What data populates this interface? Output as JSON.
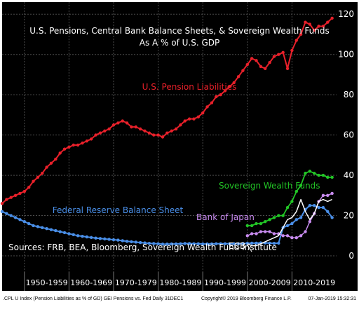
{
  "chart_data": {
    "type": "line",
    "title": "U.S. Pensions, Central Bank Balance Sheets, & Sovereign Wealth Funds",
    "subtitle": "As A % of U.S. GDP",
    "source_note": "Sources: FRB, BEA, Bloomberg, Sovereign Wealth Fund Institute",
    "y_ticks": [
      0,
      20,
      40,
      60,
      80,
      100,
      120
    ],
    "ylim": [
      -8,
      126
    ],
    "xlim": [
      1945,
      2020
    ],
    "decades": [
      "1950-1959",
      "1960-1969",
      "1970-1979",
      "1980-1989",
      "1990-1999",
      "2000-2009",
      "2010-2019"
    ],
    "grid": true,
    "series": [
      {
        "name": "U.S. Pension Liabilities",
        "color": "#e8202a",
        "x": [
          1945,
          1946,
          1947,
          1948,
          1949,
          1950,
          1951,
          1952,
          1953,
          1954,
          1955,
          1956,
          1957,
          1958,
          1959,
          1960,
          1961,
          1962,
          1963,
          1964,
          1965,
          1966,
          1967,
          1968,
          1969,
          1970,
          1971,
          1972,
          1973,
          1974,
          1975,
          1976,
          1977,
          1978,
          1979,
          1980,
          1981,
          1982,
          1983,
          1984,
          1985,
          1986,
          1987,
          1988,
          1989,
          1990,
          1991,
          1992,
          1993,
          1994,
          1995,
          1996,
          1997,
          1998,
          1999,
          2000,
          2001,
          2002,
          2003,
          2004,
          2005,
          2006,
          2007,
          2008,
          2009,
          2010,
          2011,
          2012,
          2013,
          2014,
          2015,
          2016,
          2017,
          2018,
          2019
        ],
        "values": [
          26,
          28,
          29,
          30,
          31,
          32,
          34,
          37,
          39,
          41,
          44,
          46,
          48,
          51,
          53,
          54,
          55,
          55,
          56,
          57,
          58,
          60,
          61,
          62,
          63,
          65,
          66,
          67,
          66,
          64,
          64,
          63,
          62,
          61,
          60,
          60,
          59,
          61,
          62,
          63,
          65,
          67,
          68,
          68,
          69,
          71,
          74,
          76,
          79,
          80,
          82,
          84,
          86,
          89,
          92,
          95,
          98,
          97,
          94,
          93,
          96,
          99,
          100,
          101,
          93,
          102,
          107,
          110,
          116,
          115,
          112,
          114,
          114,
          116,
          118
        ]
      },
      {
        "name": "Federal Reserve Balance Sheet",
        "color": "#4a8fe8",
        "x": [
          1945,
          1946,
          1947,
          1948,
          1949,
          1950,
          1951,
          1952,
          1953,
          1954,
          1955,
          1956,
          1957,
          1958,
          1959,
          1960,
          1961,
          1962,
          1963,
          1964,
          1965,
          1966,
          1967,
          1968,
          1969,
          1970,
          1971,
          1972,
          1973,
          1974,
          1975,
          1976,
          1977,
          1978,
          1979,
          1980,
          1981,
          1982,
          1983,
          1984,
          1985,
          1986,
          1987,
          1988,
          1989,
          1990,
          1991,
          1992,
          1993,
          1994,
          1995,
          1996,
          1997,
          1998,
          1999,
          2000,
          2001,
          2002,
          2003,
          2004,
          2005,
          2006,
          2007,
          2008,
          2009,
          2010,
          2011,
          2012,
          2013,
          2014,
          2015,
          2016,
          2017,
          2018,
          2019
        ],
        "values": [
          22,
          21,
          20,
          19,
          18,
          17,
          16,
          15,
          14.5,
          14,
          13.5,
          13,
          12.5,
          12,
          11.5,
          11,
          10.5,
          10,
          9.7,
          9.4,
          9.1,
          8.8,
          8.6,
          8.4,
          8.2,
          8,
          7.8,
          7.5,
          7.2,
          7,
          6.8,
          6.6,
          6.4,
          6.2,
          6.1,
          6,
          5.8,
          5.8,
          5.9,
          5.9,
          6,
          6.1,
          6.1,
          6,
          6,
          5.9,
          5.9,
          5.9,
          6,
          6,
          6,
          6,
          6,
          6,
          6.1,
          6.2,
          6.3,
          6.3,
          6.4,
          6.4,
          6.3,
          6.2,
          6.3,
          14,
          15,
          16,
          18,
          19,
          23,
          25,
          25,
          24,
          24,
          22,
          19
        ]
      },
      {
        "name": "Sovereign Wealth Funds",
        "color": "#22c626",
        "x": [
          2000,
          2001,
          2002,
          2003,
          2004,
          2005,
          2006,
          2007,
          2008,
          2009,
          2010,
          2011,
          2012,
          2013,
          2014,
          2015,
          2016,
          2017,
          2018,
          2019
        ],
        "values": [
          15,
          15,
          16,
          16,
          17,
          18,
          19,
          20,
          20,
          24,
          27,
          32,
          35,
          41,
          42,
          41,
          40,
          40,
          39,
          39
        ]
      },
      {
        "name": "Bank of Japan",
        "color": "#c98cf0",
        "x": [
          2000,
          2001,
          2002,
          2003,
          2004,
          2005,
          2006,
          2007,
          2008,
          2009,
          2010,
          2011,
          2012,
          2013,
          2014,
          2015,
          2016,
          2017,
          2018,
          2019
        ],
        "values": [
          10,
          11,
          11,
          12,
          12,
          12,
          11,
          11,
          10,
          10,
          9,
          9,
          10,
          12,
          17,
          21,
          27,
          30,
          30,
          31
        ]
      },
      {
        "name": "ECB",
        "color": "#ffffff",
        "x": [
          2000,
          2001,
          2002,
          2003,
          2004,
          2005,
          2006,
          2007,
          2008,
          2009,
          2010,
          2011,
          2012,
          2013,
          2014,
          2015,
          2016,
          2017,
          2018,
          2019
        ],
        "values": [
          6,
          5,
          5,
          6,
          7,
          8,
          9,
          10,
          14,
          18,
          19,
          22,
          28,
          22,
          18,
          21,
          27,
          28,
          27,
          28
        ]
      }
    ]
  },
  "footer": {
    "left": ".CPL U Index (Pension Liabilities as % of GD) GEI Pensions vs. Fed  Daily 31DEC1",
    "center": "Copyright© 2019 Bloomberg Finance L.P.",
    "right": "07-Jan-2019 15:32:31"
  }
}
